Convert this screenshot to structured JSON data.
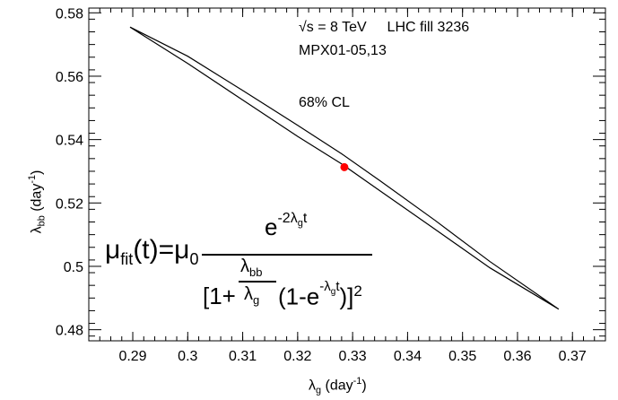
{
  "chart_data": {
    "type": "line",
    "title": "",
    "xlabel": {
      "base": "λ",
      "sub": "g",
      "unit": " (day",
      "unit_sup": "-1",
      "close": ")"
    },
    "ylabel": {
      "base": "λ",
      "sub": "bb",
      "unit": " (day",
      "unit_sup": "-1",
      "close": ")"
    },
    "xlim": [
      0.282,
      0.376
    ],
    "ylim": [
      0.4765,
      0.5815
    ],
    "xticks": [
      0.29,
      0.3,
      0.31,
      0.32,
      0.33,
      0.34,
      0.35,
      0.36,
      0.37
    ],
    "xtick_labels": [
      "0.29",
      "0.3",
      "0.31",
      "0.32",
      "0.33",
      "0.34",
      "0.35",
      "0.36",
      "0.37"
    ],
    "yticks": [
      0.48,
      0.5,
      0.52,
      0.54,
      0.56,
      0.58
    ],
    "ytick_labels": [
      "0.48",
      "0.5",
      "0.52",
      "0.54",
      "0.56",
      "0.58"
    ],
    "grid": false,
    "series": [
      {
        "kind": "contour",
        "color": "#000000",
        "points": [
          [
            0.2895,
            0.5755
          ],
          [
            0.3,
            0.5663
          ],
          [
            0.31,
            0.5555
          ],
          [
            0.32,
            0.5445
          ],
          [
            0.328,
            0.5355
          ],
          [
            0.335,
            0.527
          ],
          [
            0.345,
            0.5145
          ],
          [
            0.355,
            0.5015
          ],
          [
            0.3675,
            0.4865
          ],
          [
            0.355,
            0.4995
          ],
          [
            0.345,
            0.5117
          ],
          [
            0.335,
            0.5238
          ],
          [
            0.328,
            0.5323
          ],
          [
            0.32,
            0.541
          ],
          [
            0.31,
            0.5525
          ],
          [
            0.3,
            0.564
          ],
          [
            0.2895,
            0.5755
          ]
        ]
      },
      {
        "kind": "best_fit_point",
        "color": "#ff0000",
        "points": [
          [
            0.3285,
            0.5313
          ]
        ]
      }
    ]
  },
  "annotations": {
    "line1_sqrt": "√s = 8 TeV",
    "line1_fill": "LHC fill 3236",
    "line2": "MPX01-05,13",
    "cl": "68% CL"
  },
  "formula": {
    "mu": "μ",
    "fit_sub": "fit",
    "lhs_rest": "(t)=",
    "zero_sub": "0",
    "num_base": "e",
    "num_exp": "-2λ",
    "num_exp_sub": "g",
    "num_exp_t": "t",
    "den_open": "[1+",
    "lam_bb": "λ",
    "lam_bb_sub": "bb",
    "lam_g": "λ",
    "lam_g_sub": "g",
    "den_mid": "(1-e",
    "den_exp": "-λ",
    "den_exp_sub": "g",
    "den_exp_t": "t",
    "den_close": ")]",
    "den_sq": "2"
  }
}
